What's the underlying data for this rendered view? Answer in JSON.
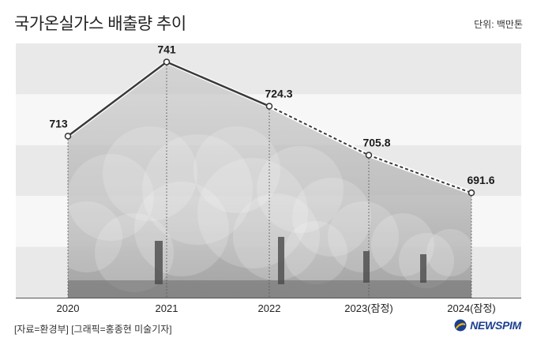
{
  "header": {
    "title": "국가온실가스 배출량 추이",
    "unit": "단위: 백만톤"
  },
  "footer": {
    "source": "[자료=환경부] [그래픽=홍종현 미술기자]",
    "logo_text": "NEWSPIM"
  },
  "colors": {
    "band_dark": "#e9e9e9",
    "band_light": "#f7f7f7",
    "line": "#3a3a3a",
    "area_fill": "#b9b9b9",
    "logo_blue": "#1a3f8f",
    "logo_yellow": "#f2b600"
  },
  "chart_data": {
    "type": "line",
    "categories": [
      "2020",
      "2021",
      "2022",
      "2023(잠정)",
      "2024(잠정)"
    ],
    "values": [
      713,
      741,
      724.3,
      705.8,
      691.6
    ],
    "value_labels": [
      "713",
      "741",
      "724.3",
      "705.8",
      "691.6"
    ],
    "line_styles": [
      "solid",
      "solid",
      "dashed",
      "dashed"
    ],
    "ylim": [
      652,
      748
    ],
    "grid": "horizontal alternating bands",
    "background_image": "industrial smokestacks with smoke plumes",
    "title": "국가온실가스 배출량 추이"
  }
}
